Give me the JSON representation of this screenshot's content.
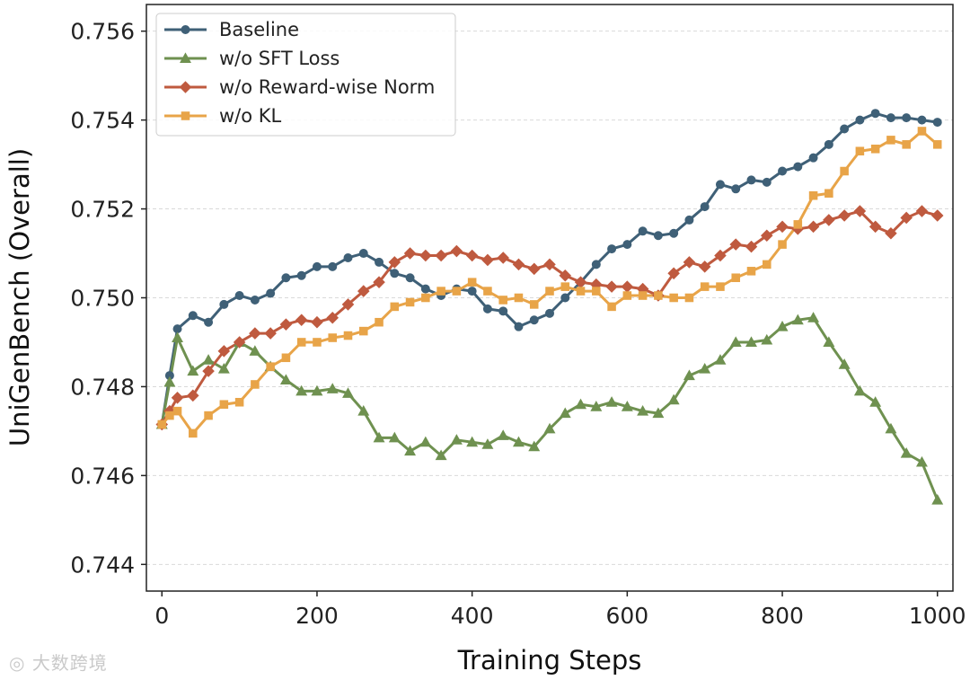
{
  "chart_data": {
    "type": "line",
    "title": "",
    "xlabel": "Training Steps",
    "ylabel": "UniGenBench (Overall)",
    "xlim": [
      -20,
      1020
    ],
    "ylim": [
      0.7434,
      0.7566
    ],
    "xticks": [
      0,
      200,
      400,
      600,
      800,
      1000
    ],
    "xtick_labels": [
      "0",
      "200",
      "400",
      "600",
      "800",
      "1000"
    ],
    "yticks": [
      0.744,
      0.746,
      0.748,
      0.75,
      0.752,
      0.754,
      0.756
    ],
    "ytick_labels": [
      "0.744",
      "0.746",
      "0.748",
      "0.750",
      "0.752",
      "0.754",
      "0.756"
    ],
    "grid": "horizontal dashed",
    "legend_position": "top-left",
    "x": [
      0,
      10,
      20,
      40,
      60,
      80,
      100,
      120,
      140,
      160,
      180,
      200,
      220,
      240,
      260,
      280,
      300,
      320,
      340,
      360,
      380,
      400,
      420,
      440,
      460,
      480,
      500,
      520,
      540,
      560,
      580,
      600,
      620,
      640,
      660,
      680,
      700,
      720,
      740,
      760,
      780,
      800,
      820,
      840,
      860,
      880,
      900,
      920,
      940,
      960,
      980,
      1000
    ],
    "series": [
      {
        "name": "Baseline",
        "color": "#3f6077",
        "marker": "circle",
        "values": [
          0.74715,
          0.74825,
          0.7493,
          0.7496,
          0.74945,
          0.74985,
          0.75005,
          0.74995,
          0.7501,
          0.75045,
          0.7505,
          0.7507,
          0.7507,
          0.7509,
          0.751,
          0.7508,
          0.75055,
          0.75045,
          0.7502,
          0.75005,
          0.7502,
          0.75015,
          0.74975,
          0.7497,
          0.74935,
          0.7495,
          0.74965,
          0.75,
          0.75035,
          0.75075,
          0.7511,
          0.7512,
          0.7515,
          0.7514,
          0.75145,
          0.75175,
          0.75205,
          0.75255,
          0.75245,
          0.75265,
          0.7526,
          0.75285,
          0.75295,
          0.75315,
          0.75345,
          0.7538,
          0.754,
          0.75415,
          0.75405,
          0.75405,
          0.754,
          0.75395
        ]
      },
      {
        "name": "w/o SFT Loss",
        "color": "#6f9150",
        "marker": "triangle",
        "values": [
          0.74715,
          0.7481,
          0.7491,
          0.74835,
          0.7486,
          0.7484,
          0.749,
          0.7488,
          0.74845,
          0.74815,
          0.7479,
          0.7479,
          0.74795,
          0.74785,
          0.74745,
          0.74685,
          0.74685,
          0.74655,
          0.74675,
          0.74645,
          0.7468,
          0.74675,
          0.7467,
          0.7469,
          0.74675,
          0.74665,
          0.74705,
          0.7474,
          0.7476,
          0.74755,
          0.74765,
          0.74755,
          0.74745,
          0.7474,
          0.7477,
          0.74825,
          0.7484,
          0.7486,
          0.749,
          0.749,
          0.74905,
          0.74935,
          0.7495,
          0.74955,
          0.749,
          0.7485,
          0.7479,
          0.74765,
          0.74705,
          0.7465,
          0.7463,
          0.74545
        ]
      },
      {
        "name": "w/o Reward-wise Norm",
        "color": "#bf5a3f",
        "marker": "diamond",
        "values": [
          0.74715,
          0.74745,
          0.74775,
          0.7478,
          0.74835,
          0.7488,
          0.749,
          0.7492,
          0.7492,
          0.7494,
          0.7495,
          0.74945,
          0.74955,
          0.74985,
          0.75015,
          0.75035,
          0.7508,
          0.751,
          0.75095,
          0.75095,
          0.75105,
          0.75095,
          0.75085,
          0.7509,
          0.75075,
          0.75065,
          0.75075,
          0.7505,
          0.75035,
          0.7503,
          0.75025,
          0.75025,
          0.7502,
          0.75005,
          0.75055,
          0.7508,
          0.7507,
          0.75095,
          0.7512,
          0.75115,
          0.7514,
          0.7516,
          0.75155,
          0.7516,
          0.75175,
          0.75185,
          0.75195,
          0.7516,
          0.75145,
          0.7518,
          0.75195,
          0.75185
        ]
      },
      {
        "name": "w/o KL",
        "color": "#e8a448",
        "marker": "square",
        "values": [
          0.74715,
          0.74735,
          0.74745,
          0.74695,
          0.74735,
          0.7476,
          0.74765,
          0.74805,
          0.74845,
          0.74865,
          0.749,
          0.749,
          0.7491,
          0.74915,
          0.74925,
          0.74945,
          0.7498,
          0.7499,
          0.75,
          0.75015,
          0.75015,
          0.75035,
          0.75015,
          0.74995,
          0.75,
          0.74985,
          0.75015,
          0.75025,
          0.75015,
          0.75015,
          0.7498,
          0.75005,
          0.75005,
          0.75005,
          0.75,
          0.75,
          0.75025,
          0.75025,
          0.75045,
          0.7506,
          0.75075,
          0.7512,
          0.75165,
          0.7523,
          0.75235,
          0.75285,
          0.7533,
          0.75335,
          0.75355,
          0.75345,
          0.75375,
          0.75345
        ]
      }
    ]
  },
  "watermark": "大数跨境"
}
